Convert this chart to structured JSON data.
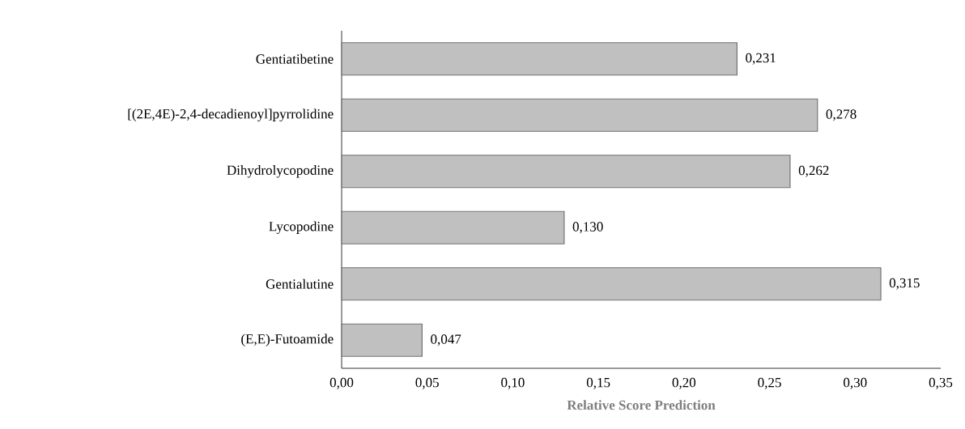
{
  "chart_data": {
    "type": "bar",
    "orientation": "horizontal",
    "xlabel": "Relative Score Prediction",
    "categories": [
      "Gentiatibetine",
      "[(2E,4E)-2,4-decadienoyl]pyrrolidine",
      "Dihydrolycopodine",
      "Lycopodine",
      "Gentialutine",
      "(E,E)-Futoamide"
    ],
    "values": [
      0.231,
      0.278,
      0.262,
      0.13,
      0.315,
      0.047
    ],
    "value_labels": [
      "0,231",
      "0,278",
      "0,262",
      "0,130",
      "0,315",
      "0,047"
    ],
    "color": "#c0c0c0",
    "xlim": [
      0,
      0.35
    ],
    "xticks": [
      {
        "value": 0,
        "label": "0,00"
      },
      {
        "value": 0.05,
        "label": "0,05"
      },
      {
        "value": 0.1,
        "label": "0,10"
      },
      {
        "value": 0.15,
        "label": "0,15"
      },
      {
        "value": 0.2,
        "label": "0,20"
      },
      {
        "value": 0.25,
        "label": "0,25"
      },
      {
        "value": 0.3,
        "label": "0,30"
      },
      {
        "value": 0.35,
        "label": "0,35"
      }
    ],
    "grid": false
  }
}
